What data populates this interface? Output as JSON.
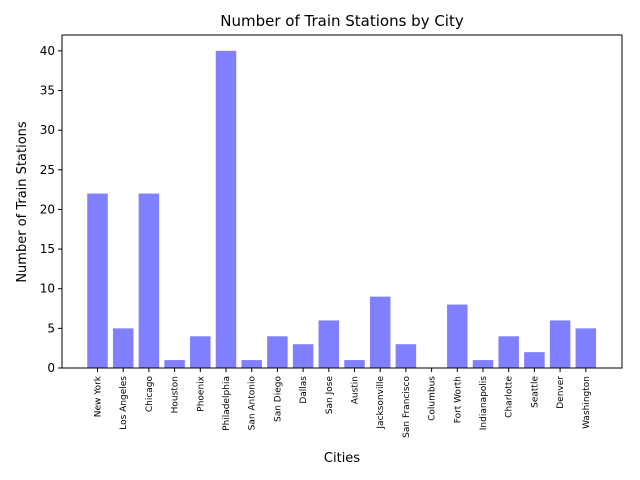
{
  "chart_data": {
    "type": "bar",
    "title": "Number of Train Stations by City",
    "xlabel": "Cities",
    "ylabel": "Number of Train Stations",
    "categories": [
      "New York",
      "Los Angeles",
      "Chicago",
      "Houston",
      "Phoenix",
      "Philadelphia",
      "San Antonio",
      "San Diego",
      "Dallas",
      "San Jose",
      "Austin",
      "Jacksonville",
      "San Francisco",
      "Columbus",
      "Fort Worth",
      "Indianapolis",
      "Charlotte",
      "Seattle",
      "Denver",
      "Washington"
    ],
    "values": [
      22,
      5,
      22,
      1,
      4,
      40,
      1,
      4,
      3,
      6,
      1,
      9,
      3,
      0,
      8,
      1,
      4,
      2,
      6,
      5
    ],
    "ylim": [
      0,
      42
    ],
    "yticks": [
      0,
      5,
      10,
      15,
      20,
      25,
      30,
      35,
      40
    ],
    "bar_color": "#8080ff",
    "grid": false,
    "legend": "none"
  }
}
